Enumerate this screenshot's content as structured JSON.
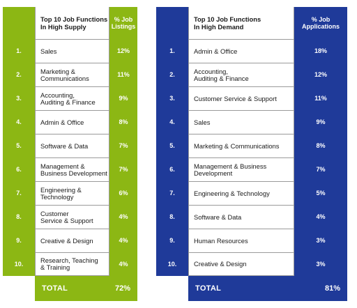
{
  "supply": {
    "header": {
      "title_line1": "Top 10 Job Functions",
      "title_line2": "In High Supply",
      "metric_line1": "% Job",
      "metric_line2": "Listings"
    },
    "rows": [
      {
        "rank": "1.",
        "line1": "Sales",
        "line2": "",
        "value": "12%"
      },
      {
        "rank": "2.",
        "line1": "Marketing &",
        "line2": "Communications",
        "value": "11%"
      },
      {
        "rank": "3.",
        "line1": "Accounting,",
        "line2": "Auditing & Finance",
        "value": "9%"
      },
      {
        "rank": "4.",
        "line1": "Admin & Office",
        "line2": "",
        "value": "8%"
      },
      {
        "rank": "5.",
        "line1": "Software & Data",
        "line2": "",
        "value": "7%"
      },
      {
        "rank": "6.",
        "line1": "Management &",
        "line2": "Business Development",
        "value": "7%"
      },
      {
        "rank": "7.",
        "line1": "Engineering &",
        "line2": "Technology",
        "value": "6%"
      },
      {
        "rank": "8.",
        "line1": "Customer",
        "line2": "Service & Support",
        "value": "4%"
      },
      {
        "rank": "9.",
        "line1": "Creative & Design",
        "line2": "",
        "value": "4%"
      },
      {
        "rank": "10.",
        "line1": "Research, Teaching",
        "line2": "& Training",
        "value": "4%"
      }
    ],
    "total_label": "TOTAL",
    "total_value": "72%"
  },
  "demand": {
    "header": {
      "title_line1": "Top 10 Job Functions",
      "title_line2": "In High Demand",
      "metric_line1": "% Job",
      "metric_line2": "Applications"
    },
    "rows": [
      {
        "rank": "1.",
        "line1": "Admin & Office",
        "line2": "",
        "value": "18%"
      },
      {
        "rank": "2.",
        "line1": "Accounting,",
        "line2": "Auditing & Finance",
        "value": "12%"
      },
      {
        "rank": "3.",
        "line1": "Customer Service & Support",
        "line2": "",
        "value": "11%"
      },
      {
        "rank": "4.",
        "line1": "Sales",
        "line2": "",
        "value": "9%"
      },
      {
        "rank": "5.",
        "line1": "Marketing & Communications",
        "line2": "",
        "value": "8%"
      },
      {
        "rank": "6.",
        "line1": "Management & Business",
        "line2": "Development",
        "value": "7%"
      },
      {
        "rank": "7.",
        "line1": "Engineering & Technology",
        "line2": "",
        "value": "5%"
      },
      {
        "rank": "8.",
        "line1": "Software & Data",
        "line2": "",
        "value": "4%"
      },
      {
        "rank": "9.",
        "line1": "Human Resources",
        "line2": "",
        "value": "3%"
      },
      {
        "rank": "10.",
        "line1": "Creative & Design",
        "line2": "",
        "value": "3%"
      }
    ],
    "total_label": "TOTAL",
    "total_value": "81%"
  },
  "colors": {
    "supply_accent": "#8cb714",
    "demand_accent": "#1f3a99"
  }
}
